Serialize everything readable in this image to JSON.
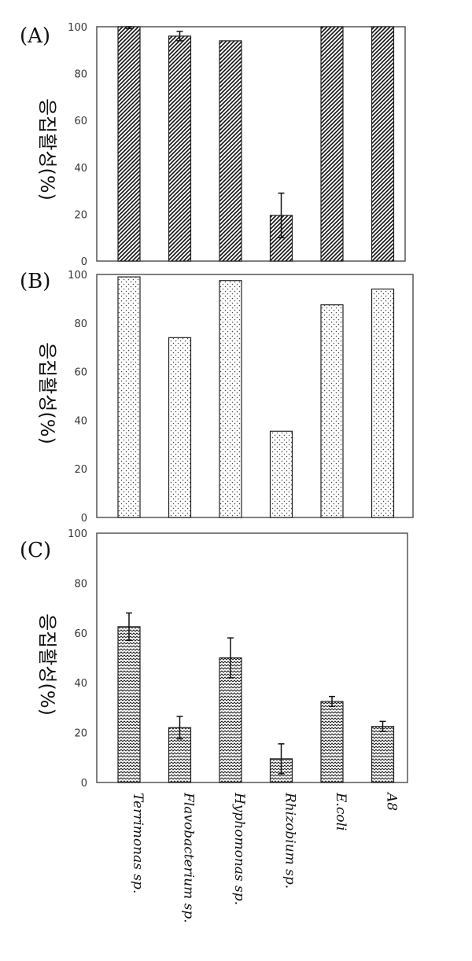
{
  "chart_data": [
    {
      "type": "bar",
      "panel_label": "(A)",
      "ylabel": "응집활성(%)",
      "ylim": [
        0,
        100
      ],
      "yticks": [
        0,
        20,
        40,
        60,
        80,
        100
      ],
      "categories": [
        "Terrimonas sp.",
        "Flavobacterium sp.",
        "Hyphomonas sp.",
        "Rhizobium sp.",
        "E.coli",
        "A8"
      ],
      "values": [
        100,
        96,
        94,
        19.5,
        100,
        100
      ],
      "errors": [
        0.8,
        2,
        0,
        9.5,
        0,
        0
      ],
      "pattern": "diagonal-dense",
      "grid": false
    },
    {
      "type": "bar",
      "panel_label": "(B)",
      "ylabel": "응집활성(%)",
      "ylim": [
        0,
        100
      ],
      "yticks": [
        0,
        20,
        40,
        60,
        80,
        100
      ],
      "categories": [
        "Terrimonas sp.",
        "Flavobacterium sp.",
        "Hyphomonas sp.",
        "Rhizobium sp.",
        "E.coli",
        "A8"
      ],
      "values": [
        99,
        74,
        97.5,
        35.5,
        87.5,
        94
      ],
      "errors": [
        0,
        0,
        0,
        0,
        0,
        0
      ],
      "pattern": "dots",
      "grid": false
    },
    {
      "type": "bar",
      "panel_label": "(C)",
      "ylabel": "응집활성(%)",
      "ylim": [
        0,
        100
      ],
      "yticks": [
        0,
        20,
        40,
        60,
        80,
        100
      ],
      "categories": [
        "Terrimonas sp.",
        "Flavobacterium sp.",
        "Hyphomonas sp.",
        "Rhizobium sp.",
        "E.coli",
        "A8"
      ],
      "values": [
        62.5,
        22,
        50,
        9.5,
        32.5,
        22.5
      ],
      "errors": [
        5.5,
        4.5,
        8,
        6,
        2,
        2
      ],
      "pattern": "zigzag",
      "grid": false
    }
  ]
}
